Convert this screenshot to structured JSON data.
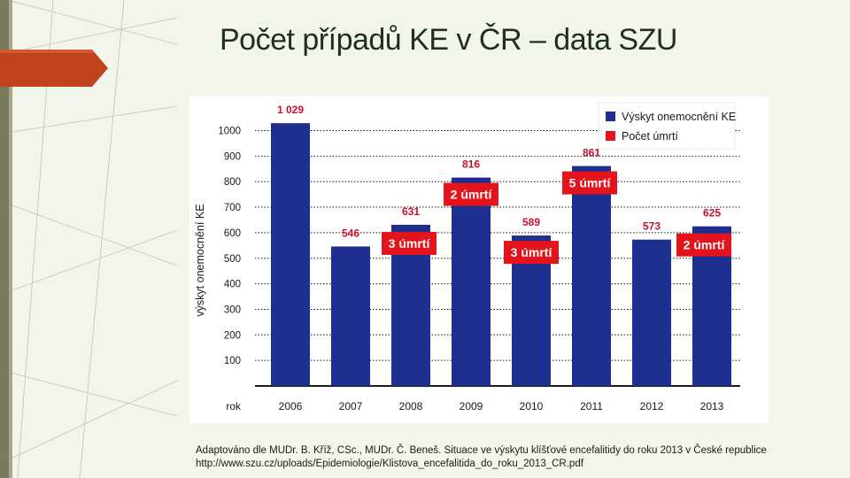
{
  "slide": {
    "title": "Počet případů KE v ČR – data SZU",
    "caption_line1": "Adaptováno dle MUDr. B. Kříž, CSc., MUDr. Č. Beneš. Situace ve výskytu klíšťové encefalitidy do roku 2013 v České republice",
    "caption_line2": "http://www.szu.cz/uploads/Epidemiologie/Klistova_encefalitida_do_roku_2013_CR.pdf"
  },
  "colors": {
    "bar": "#1e2f8f",
    "accent_red": "#e3141b",
    "label_red": "#c8102e",
    "grid": "#1a1a1a",
    "decor_orange": "#c0451e"
  },
  "chart_data": {
    "type": "bar",
    "xlabel": "rok",
    "ylabel": "výskyt onemocnění KE",
    "categories": [
      "2006",
      "2007",
      "2008",
      "2009",
      "2010",
      "2011",
      "2012",
      "2013"
    ],
    "series": [
      {
        "name": "Výskyt onemocnění KE",
        "values": [
          1029,
          546,
          631,
          816,
          589,
          861,
          573,
          625
        ]
      }
    ],
    "value_labels": [
      "1 029",
      "546",
      "631",
      "816",
      "589",
      "861",
      "573",
      "625"
    ],
    "deaths": [
      {
        "category": "2008",
        "label": "3 úmrtí"
      },
      {
        "category": "2009",
        "label": "2 úmrtí"
      },
      {
        "category": "2010",
        "label": "3 úmrtí"
      },
      {
        "category": "2011",
        "label": "5 úmrtí"
      },
      {
        "category": "2013",
        "label": "2 úmrtí"
      }
    ],
    "legend": [
      {
        "label": "Výskyt onemocnění KE",
        "color": "#1e2f8f"
      },
      {
        "label": "Počet úmrtí",
        "color": "#e3141b"
      }
    ],
    "legend_position": "top-right",
    "yticks": [
      100,
      200,
      300,
      400,
      500,
      600,
      700,
      800,
      900,
      1000
    ],
    "ylim": [
      0,
      1100
    ],
    "grid": true
  }
}
